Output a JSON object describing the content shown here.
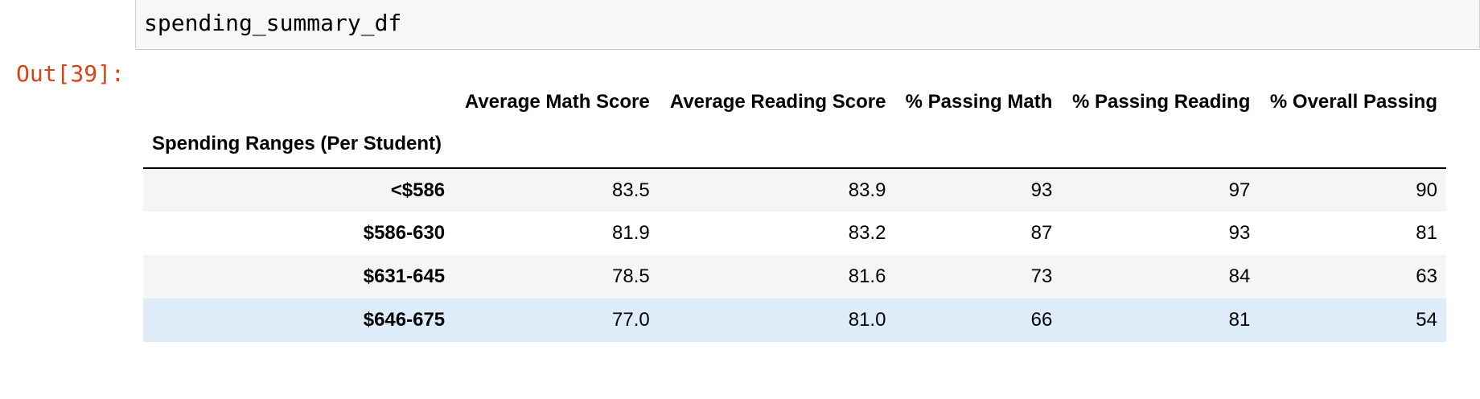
{
  "input_cell": {
    "code": "spending_summary_df"
  },
  "output_prompt": "Out[39]:",
  "dataframe": {
    "columns": [
      "Average Math Score",
      "Average Reading Score",
      "% Passing Math",
      "% Passing Reading",
      "% Overall Passing"
    ],
    "index_name": "Spending Ranges (Per Student)",
    "rows": [
      {
        "label": "<$586",
        "values": [
          "83.5",
          "83.9",
          "93",
          "97",
          "90"
        ]
      },
      {
        "label": "$586-630",
        "values": [
          "81.9",
          "83.2",
          "87",
          "93",
          "81"
        ]
      },
      {
        "label": "$631-645",
        "values": [
          "78.5",
          "81.6",
          "73",
          "84",
          "63"
        ]
      },
      {
        "label": "$646-675",
        "values": [
          "77.0",
          "81.0",
          "66",
          "81",
          "54"
        ]
      }
    ]
  },
  "colors": {
    "prompt_out": "#d84315",
    "row_striped": "#f5f5f5",
    "row_hover": "#deebf9",
    "input_bg": "#f7f7f7"
  }
}
